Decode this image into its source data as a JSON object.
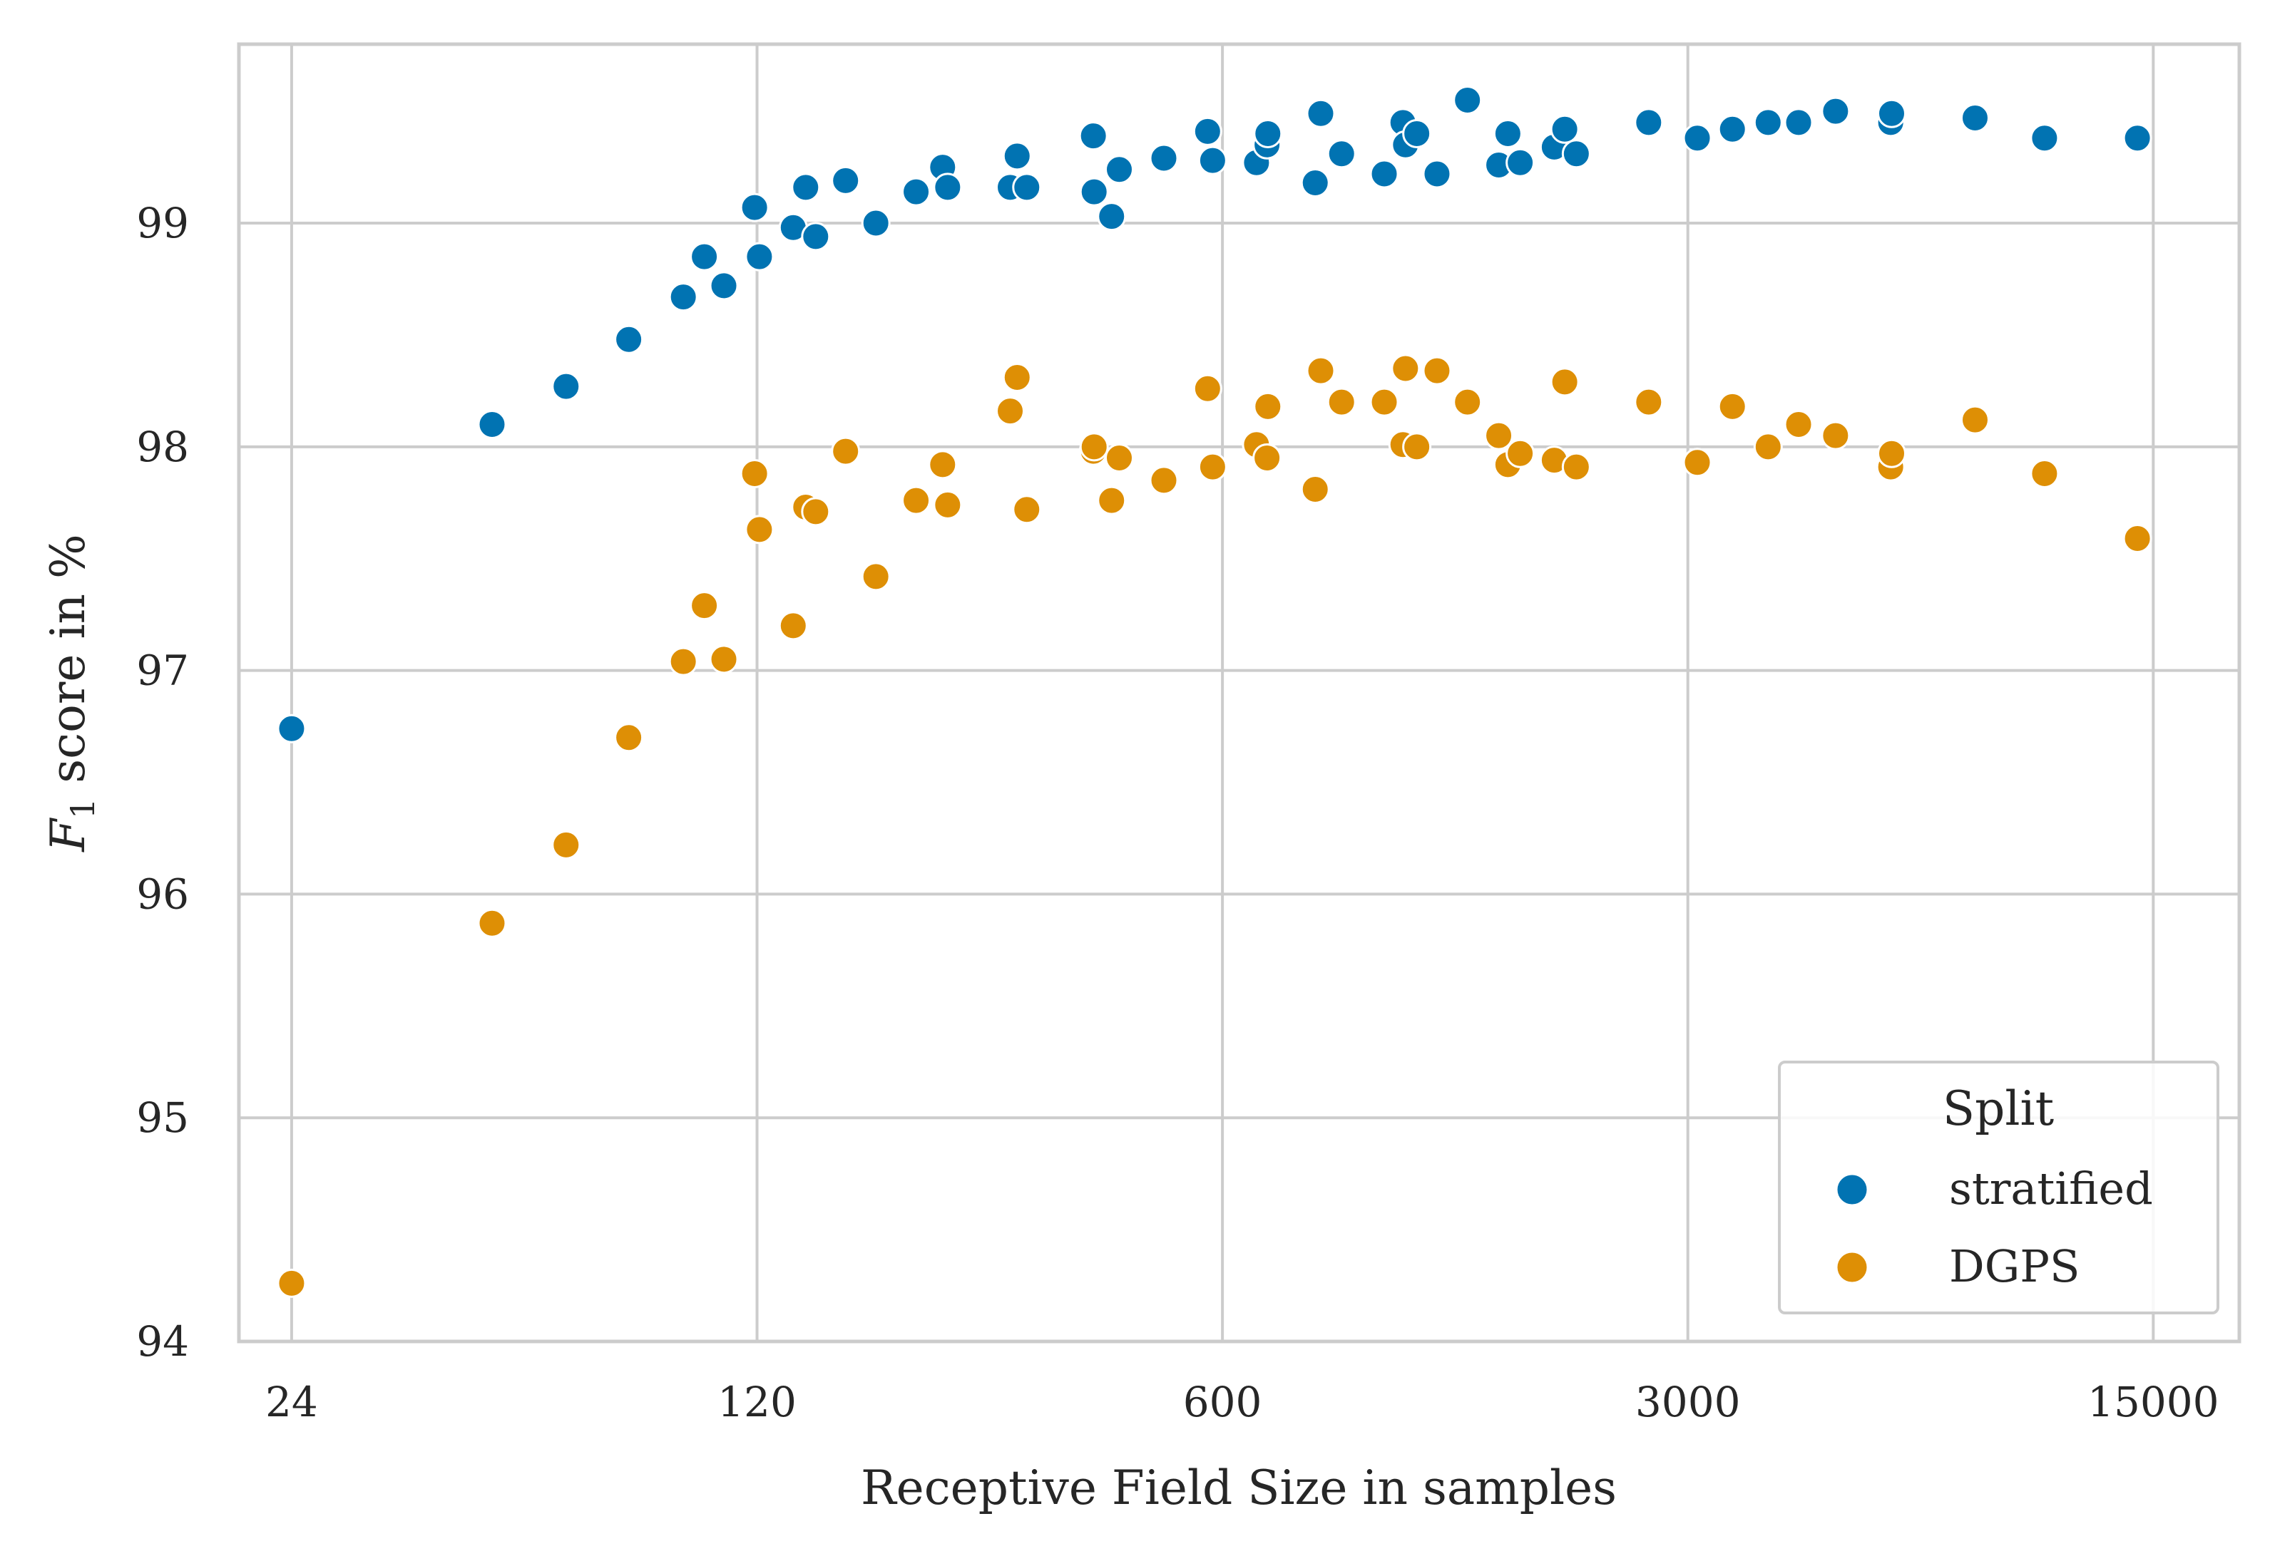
{
  "chart_data": {
    "type": "scatter",
    "xlabel": "Receptive Field Size in samples",
    "ylabel_main": "F",
    "ylabel_sub": "1",
    "ylabel_rest": " score in %",
    "xscale": "log",
    "xlim": [
      20,
      20200
    ],
    "ylim": [
      94,
      99.8
    ],
    "xticks": [
      24,
      120,
      600,
      3000,
      15000
    ],
    "xtick_labels": [
      "24",
      "120",
      "600",
      "3000",
      "15000"
    ],
    "yticks": [
      94,
      95,
      96,
      97,
      98,
      99
    ],
    "ytick_labels": [
      "94",
      "95",
      "96",
      "97",
      "98",
      "99"
    ],
    "grid": true,
    "legend": {
      "title": "Split",
      "placement": "lower-right",
      "entries": [
        "stratified",
        "DGPS"
      ]
    },
    "series": [
      {
        "name": "stratified",
        "color": "#0173b2",
        "points": [
          [
            24,
            96.74
          ],
          [
            48,
            98.1
          ],
          [
            62,
            98.27
          ],
          [
            77,
            98.48
          ],
          [
            93,
            98.67
          ],
          [
            100,
            98.85
          ],
          [
            107,
            98.72
          ],
          [
            119,
            99.07
          ],
          [
            121,
            98.85
          ],
          [
            136,
            98.98
          ],
          [
            142,
            99.16
          ],
          [
            147,
            98.94
          ],
          [
            163,
            99.19
          ],
          [
            181,
            99.0
          ],
          [
            208,
            99.14
          ],
          [
            228,
            99.25
          ],
          [
            232,
            99.16
          ],
          [
            288,
            99.16
          ],
          [
            295,
            99.3
          ],
          [
            305,
            99.16
          ],
          [
            384,
            99.39
          ],
          [
            385,
            99.14
          ],
          [
            409,
            99.03
          ],
          [
            420,
            99.24
          ],
          [
            490,
            99.29
          ],
          [
            570,
            99.41
          ],
          [
            580,
            99.28
          ],
          [
            675,
            99.27
          ],
          [
            700,
            99.35
          ],
          [
            702,
            99.4
          ],
          [
            827,
            99.18
          ],
          [
            843,
            99.49
          ],
          [
            906,
            99.31
          ],
          [
            1050,
            99.22
          ],
          [
            1120,
            99.45
          ],
          [
            1130,
            99.35
          ],
          [
            1175,
            99.4
          ],
          [
            1260,
            99.22
          ],
          [
            1400,
            99.55
          ],
          [
            1560,
            99.26
          ],
          [
            1610,
            99.4
          ],
          [
            1680,
            99.27
          ],
          [
            1890,
            99.34
          ],
          [
            1960,
            99.42
          ],
          [
            2040,
            99.31
          ],
          [
            2620,
            99.45
          ],
          [
            3100,
            99.38
          ],
          [
            3500,
            99.42
          ],
          [
            3960,
            99.45
          ],
          [
            4400,
            99.45
          ],
          [
            5000,
            99.5
          ],
          [
            6050,
            99.45
          ],
          [
            6070,
            99.49
          ],
          [
            8100,
            99.47
          ],
          [
            10300,
            99.38
          ],
          [
            14200,
            99.38
          ]
        ]
      },
      {
        "name": "DGPS",
        "color": "#de8f05",
        "points": [
          [
            24,
            94.26
          ],
          [
            48,
            95.87
          ],
          [
            62,
            96.22
          ],
          [
            77,
            96.7
          ],
          [
            93,
            97.04
          ],
          [
            100,
            97.29
          ],
          [
            107,
            97.05
          ],
          [
            119,
            97.88
          ],
          [
            121,
            97.63
          ],
          [
            136,
            97.2
          ],
          [
            142,
            97.73
          ],
          [
            147,
            97.71
          ],
          [
            163,
            97.98
          ],
          [
            181,
            97.42
          ],
          [
            208,
            97.76
          ],
          [
            228,
            97.92
          ],
          [
            232,
            97.74
          ],
          [
            288,
            98.16
          ],
          [
            295,
            98.31
          ],
          [
            305,
            97.72
          ],
          [
            384,
            97.98
          ],
          [
            385,
            98.0
          ],
          [
            409,
            97.76
          ],
          [
            420,
            97.95
          ],
          [
            490,
            97.85
          ],
          [
            570,
            98.26
          ],
          [
            580,
            97.91
          ],
          [
            675,
            98.01
          ],
          [
            700,
            97.95
          ],
          [
            702,
            98.18
          ],
          [
            827,
            97.81
          ],
          [
            843,
            98.34
          ],
          [
            906,
            98.2
          ],
          [
            1050,
            98.2
          ],
          [
            1120,
            98.01
          ],
          [
            1130,
            98.35
          ],
          [
            1175,
            98.0
          ],
          [
            1260,
            98.34
          ],
          [
            1400,
            98.2
          ],
          [
            1560,
            98.05
          ],
          [
            1610,
            97.92
          ],
          [
            1680,
            97.97
          ],
          [
            1890,
            97.94
          ],
          [
            1960,
            98.29
          ],
          [
            2040,
            97.91
          ],
          [
            2620,
            98.2
          ],
          [
            3100,
            97.93
          ],
          [
            3500,
            98.18
          ],
          [
            3960,
            98.0
          ],
          [
            4400,
            98.1
          ],
          [
            5000,
            98.05
          ],
          [
            6050,
            97.91
          ],
          [
            6070,
            97.97
          ],
          [
            8100,
            98.12
          ],
          [
            10300,
            97.88
          ],
          [
            14200,
            97.59
          ]
        ]
      }
    ]
  }
}
